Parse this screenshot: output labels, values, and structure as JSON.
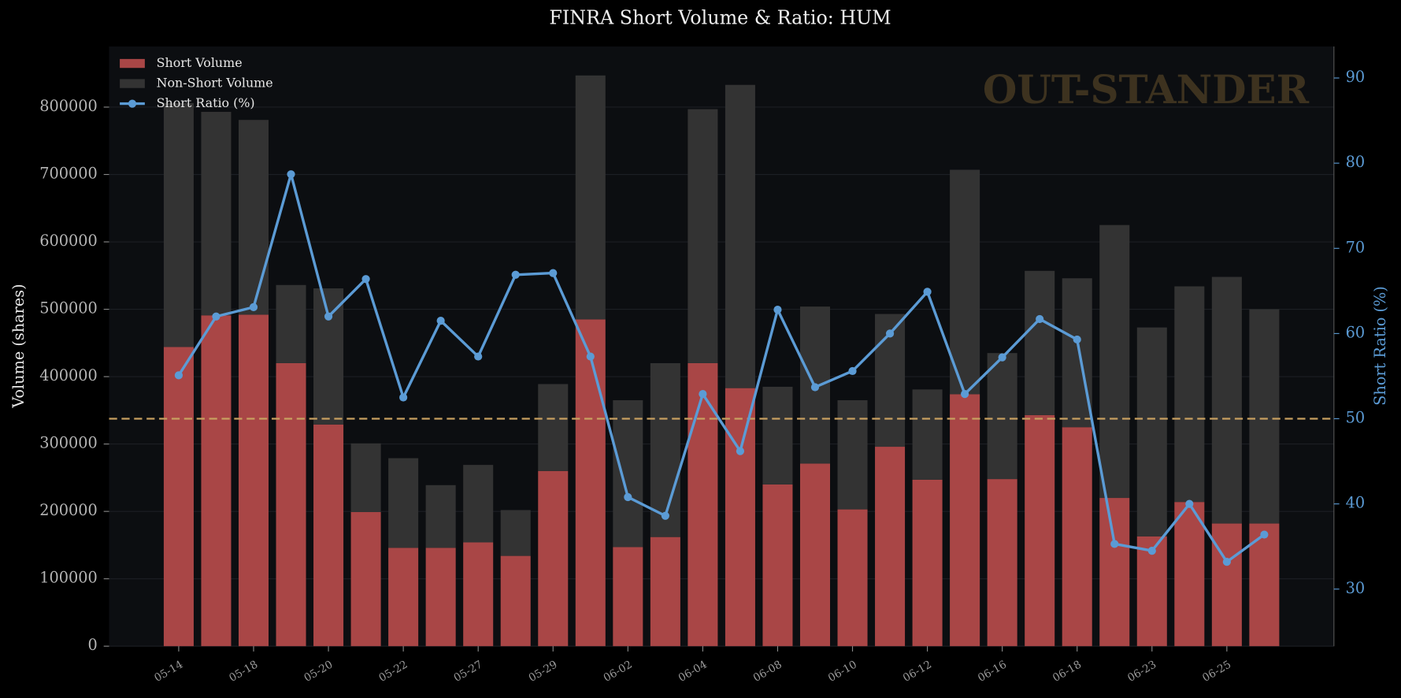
{
  "chart_data": {
    "type": "bar",
    "stacked": true,
    "title": "FINRA Short Volume & Ratio: HUM",
    "y_label": "Volume (shares)",
    "y2_label": "Short Ratio (%)",
    "watermark": "OUT-STANDER",
    "legend": "upper left",
    "grid": true,
    "categories": [
      "05-14",
      null,
      "05-18",
      null,
      "05-20",
      null,
      "05-22",
      null,
      "05-27",
      null,
      "05-29",
      null,
      "06-02",
      null,
      "06-04",
      null,
      "06-08",
      null,
      "06-10",
      null,
      "06-12",
      null,
      "06-16",
      null,
      "06-18",
      null,
      "06-23",
      null,
      "06-25",
      null
    ],
    "ylim": [
      0,
      890000
    ],
    "yticks": [
      0,
      100000,
      200000,
      300000,
      400000,
      500000,
      600000,
      700000,
      800000
    ],
    "y2lim": [
      23.3,
      93.7
    ],
    "y2ticks": [
      30,
      40,
      50,
      60,
      70,
      80,
      90
    ],
    "reference_line": {
      "value": 50,
      "axis": "y2",
      "color": "#c8a060"
    },
    "series": [
      {
        "name": "Short Volume",
        "type": "bar",
        "color": "#a94646",
        "values": [
          444000,
          491000,
          492000,
          420000,
          329000,
          199000,
          146000,
          146000,
          154000,
          134000,
          260000,
          485000,
          147000,
          162000,
          420000,
          383000,
          240000,
          271000,
          203000,
          296000,
          247000,
          374000,
          248000,
          343000,
          325000,
          220000,
          163000,
          214000,
          182000,
          182000
        ]
      },
      {
        "name": "Non-Short Volume",
        "type": "bar",
        "color": "#333333",
        "values": [
          362000,
          302000,
          289000,
          116000,
          202000,
          102000,
          133000,
          93000,
          115000,
          68000,
          129000,
          362000,
          218000,
          258000,
          377000,
          450000,
          145000,
          233000,
          162000,
          197000,
          134000,
          333000,
          187000,
          214000,
          221000,
          405000,
          310000,
          320000,
          366000,
          318000
        ]
      },
      {
        "name": "Short Ratio (%)",
        "type": "line",
        "axis": "y2",
        "color": "#5b9bd5",
        "values": [
          55.1,
          62.0,
          63.1,
          78.7,
          62.0,
          66.4,
          52.5,
          61.5,
          57.3,
          66.9,
          67.1,
          57.3,
          40.8,
          38.6,
          52.9,
          46.2,
          62.8,
          53.7,
          55.6,
          60.0,
          64.9,
          52.9,
          57.2,
          61.7,
          59.3,
          35.3,
          34.5,
          40.0,
          33.2,
          36.4
        ]
      }
    ]
  }
}
